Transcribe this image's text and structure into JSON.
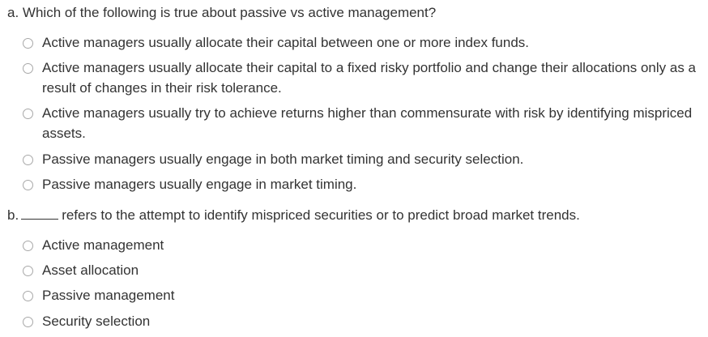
{
  "questions": [
    {
      "marker": "a.",
      "prompt": "Which of the following is true about passive vs active management?",
      "options": [
        "Active managers usually allocate their capital between one or more index funds.",
        "Active managers usually allocate their capital to a fixed risky portfolio and change their allocations only as a result of changes in their risk tolerance.",
        "Active managers usually try to achieve returns higher than commensurate with risk by identifying mispriced assets.",
        "Passive managers usually engage in both market timing and security selection.",
        "Passive managers usually engage in market timing."
      ]
    },
    {
      "marker": "b.",
      "prompt": "refers to the attempt to identify mispriced securities or to predict broad market trends.",
      "options": [
        "Active management",
        "Asset allocation",
        "Passive management",
        "Security selection"
      ]
    }
  ],
  "colors": {
    "text": "#333333",
    "radio_border": "#a8a8a8"
  }
}
